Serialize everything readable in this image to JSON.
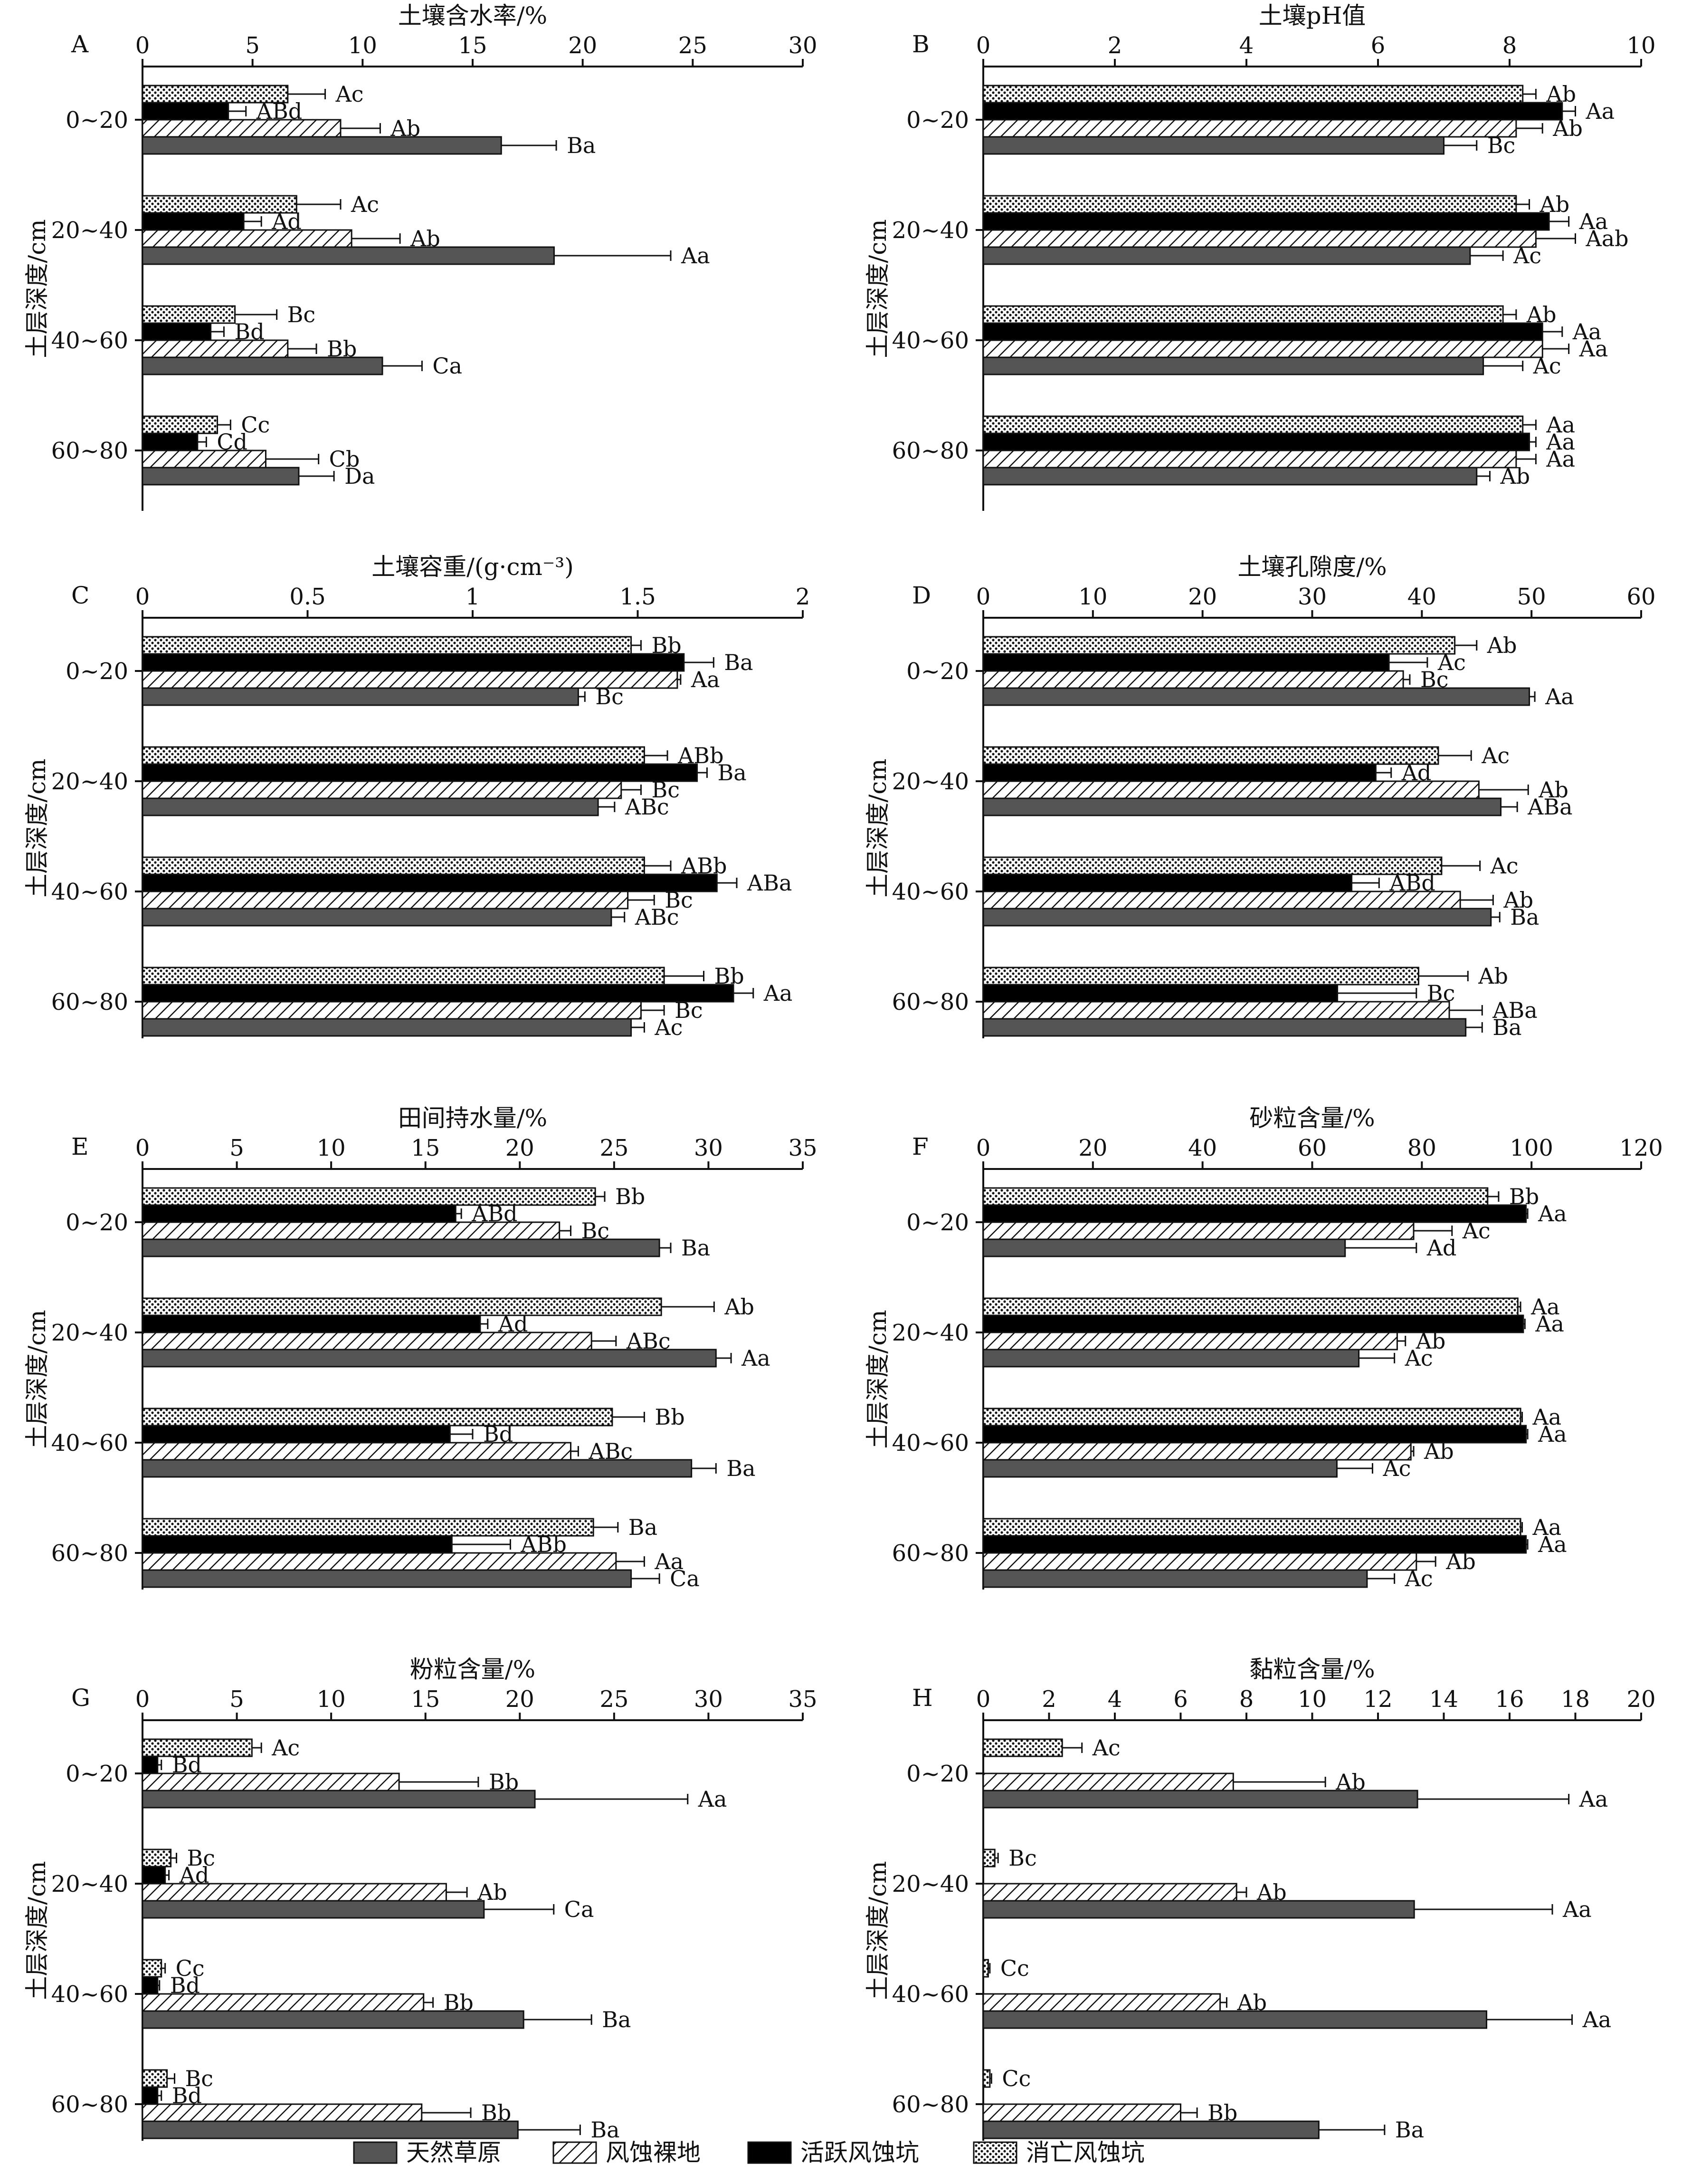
{
  "series_legend": [
    {
      "key": "grass",
      "label": "天然草原",
      "fill": "#555555"
    },
    {
      "key": "bare",
      "label": "风蚀裸地",
      "fill": "url(#hatch)"
    },
    {
      "key": "active",
      "label": "活跃风蚀坑",
      "fill": "#000000"
    },
    {
      "key": "dead",
      "label": "消亡风蚀坑",
      "fill": "url(#dots)"
    }
  ],
  "ylabel": "土层深度/cm",
  "depth_categories": [
    "0~20",
    "20~40",
    "40~60",
    "60~80"
  ],
  "chart_data": [
    {
      "type": "bar",
      "panel": "A",
      "title": "土壤含水率/%",
      "xlim": [
        0,
        30
      ],
      "xticks": [
        0,
        5,
        10,
        15,
        20,
        25,
        30
      ],
      "categories": [
        "0~20",
        "20~40",
        "40~60",
        "60~80"
      ],
      "series": [
        {
          "key": "dead",
          "values": [
            6.6,
            7.0,
            4.2,
            3.4
          ],
          "errors": [
            1.7,
            2.0,
            1.9,
            0.6
          ],
          "labels": [
            "Ac",
            "Ac",
            "Bc",
            "Cc"
          ]
        },
        {
          "key": "active",
          "values": [
            3.9,
            4.6,
            3.1,
            2.5
          ],
          "errors": [
            0.8,
            0.8,
            0.6,
            0.4
          ],
          "labels": [
            "ABd",
            "Ad",
            "Bd",
            "Cd"
          ]
        },
        {
          "key": "bare",
          "values": [
            9.0,
            9.5,
            6.6,
            5.6
          ],
          "errors": [
            1.8,
            2.2,
            1.3,
            2.4
          ],
          "labels": [
            "Ab",
            "Ab",
            "Bb",
            "Cb"
          ]
        },
        {
          "key": "grass",
          "values": [
            16.3,
            18.7,
            10.9,
            7.1
          ],
          "errors": [
            2.5,
            5.3,
            1.8,
            1.6
          ],
          "labels": [
            "Ba",
            "Aa",
            "Ca",
            "Da"
          ]
        }
      ]
    },
    {
      "type": "bar",
      "panel": "B",
      "title": "土壤pH值",
      "xlim": [
        0,
        10
      ],
      "xticks": [
        0,
        2,
        4,
        6,
        8,
        10
      ],
      "categories": [
        "0~20",
        "20~40",
        "40~60",
        "60~80"
      ],
      "series": [
        {
          "key": "dead",
          "values": [
            8.2,
            8.1,
            7.9,
            8.2
          ],
          "errors": [
            0.2,
            0.2,
            0.2,
            0.2
          ],
          "labels": [
            "Ab",
            "Ab",
            "Ab",
            "Aa"
          ]
        },
        {
          "key": "active",
          "values": [
            8.8,
            8.6,
            8.5,
            8.3
          ],
          "errors": [
            0.2,
            0.3,
            0.3,
            0.1
          ],
          "labels": [
            "Aa",
            "Aa",
            "Aa",
            "Aa"
          ]
        },
        {
          "key": "bare",
          "values": [
            8.1,
            8.4,
            8.5,
            8.1
          ],
          "errors": [
            0.4,
            0.6,
            0.4,
            0.3
          ],
          "labels": [
            "Ab",
            "Aab",
            "Aa",
            "Aa"
          ]
        },
        {
          "key": "grass",
          "values": [
            7.0,
            7.4,
            7.6,
            7.5
          ],
          "errors": [
            0.5,
            0.5,
            0.6,
            0.2
          ],
          "labels": [
            "Bc",
            "Ac",
            "Ac",
            "Ab"
          ]
        }
      ]
    },
    {
      "type": "bar",
      "panel": "C",
      "title": "土壤容重/(g·cm⁻³)",
      "xlim": [
        0,
        2.0
      ],
      "xticks": [
        0.0,
        0.5,
        1.0,
        1.5,
        2.0
      ],
      "categories": [
        "0~20",
        "20~40",
        "40~60",
        "60~80"
      ],
      "series": [
        {
          "key": "dead",
          "values": [
            1.48,
            1.52,
            1.52,
            1.58
          ],
          "errors": [
            0.03,
            0.07,
            0.08,
            0.12
          ],
          "labels": [
            "Bb",
            "ABb",
            "ABb",
            "Bb"
          ]
        },
        {
          "key": "active",
          "values": [
            1.64,
            1.68,
            1.74,
            1.79
          ],
          "errors": [
            0.09,
            0.03,
            0.06,
            0.06
          ],
          "labels": [
            "Ba",
            "Ba",
            "ABa",
            "Aa"
          ]
        },
        {
          "key": "bare",
          "values": [
            1.62,
            1.45,
            1.47,
            1.51
          ],
          "errors": [
            0.01,
            0.06,
            0.08,
            0.07
          ],
          "labels": [
            "Aa",
            "Bc",
            "Bc",
            "Bc"
          ]
        },
        {
          "key": "grass",
          "values": [
            1.32,
            1.38,
            1.42,
            1.48
          ],
          "errors": [
            0.02,
            0.05,
            0.04,
            0.04
          ],
          "labels": [
            "Bc",
            "ABc",
            "ABc",
            "Ac"
          ]
        }
      ]
    },
    {
      "type": "bar",
      "panel": "D",
      "title": "土壤孔隙度/%",
      "xlim": [
        0,
        60
      ],
      "xticks": [
        0,
        10,
        20,
        30,
        40,
        50,
        60
      ],
      "categories": [
        "0~20",
        "20~40",
        "40~60",
        "60~80"
      ],
      "series": [
        {
          "key": "dead",
          "values": [
            43.0,
            41.5,
            41.8,
            39.7
          ],
          "errors": [
            2.0,
            3.0,
            3.5,
            4.5
          ],
          "labels": [
            "Ab",
            "Ac",
            "Ac",
            "Ab"
          ]
        },
        {
          "key": "active",
          "values": [
            37.0,
            35.8,
            33.6,
            32.3
          ],
          "errors": [
            3.5,
            1.4,
            2.5,
            7.2
          ],
          "labels": [
            "Ac",
            "Ad",
            "ABd",
            "Bc"
          ]
        },
        {
          "key": "bare",
          "values": [
            38.3,
            45.2,
            43.5,
            42.5
          ],
          "errors": [
            0.6,
            4.5,
            3.0,
            3.0
          ],
          "labels": [
            "Bc",
            "Ab",
            "Ab",
            "ABa"
          ]
        },
        {
          "key": "grass",
          "values": [
            49.8,
            47.2,
            46.3,
            44.0
          ],
          "errors": [
            0.5,
            1.5,
            0.8,
            1.5
          ],
          "labels": [
            "Aa",
            "ABa",
            "Ba",
            "Ba"
          ]
        }
      ]
    },
    {
      "type": "bar",
      "panel": "E",
      "title": "田间持水量/%",
      "xlim": [
        0,
        35
      ],
      "xticks": [
        0,
        5,
        10,
        15,
        20,
        25,
        30,
        35
      ],
      "categories": [
        "0~20",
        "20~40",
        "40~60",
        "60~80"
      ],
      "series": [
        {
          "key": "dead",
          "values": [
            24.0,
            27.5,
            24.9,
            23.9
          ],
          "errors": [
            0.5,
            2.8,
            1.7,
            1.3
          ],
          "labels": [
            "Bb",
            "Ab",
            "Bb",
            "Ba"
          ]
        },
        {
          "key": "active",
          "values": [
            16.6,
            17.9,
            16.3,
            16.4
          ],
          "errors": [
            0.3,
            0.4,
            1.2,
            3.1
          ],
          "labels": [
            "ABd",
            "Ad",
            "Bd",
            "ABb"
          ]
        },
        {
          "key": "bare",
          "values": [
            22.1,
            23.8,
            22.7,
            25.1
          ],
          "errors": [
            0.6,
            1.3,
            0.4,
            1.5
          ],
          "labels": [
            "Bc",
            "ABc",
            "ABc",
            "Aa"
          ]
        },
        {
          "key": "grass",
          "values": [
            27.4,
            30.4,
            29.1,
            25.9
          ],
          "errors": [
            0.6,
            0.8,
            1.3,
            1.5
          ],
          "labels": [
            "Ba",
            "Aa",
            "Ba",
            "Ca"
          ]
        }
      ]
    },
    {
      "type": "bar",
      "panel": "F",
      "title": "砂粒含量/%",
      "xlim": [
        0,
        120
      ],
      "xticks": [
        0,
        20,
        40,
        60,
        80,
        100,
        120
      ],
      "categories": [
        "0~20",
        "20~40",
        "40~60",
        "60~80"
      ],
      "series": [
        {
          "key": "dead",
          "values": [
            92.0,
            97.5,
            98.0,
            98.0
          ],
          "errors": [
            2.0,
            0.5,
            0.3,
            0.3
          ],
          "labels": [
            "Bb",
            "Aa",
            "Aa",
            "Aa"
          ]
        },
        {
          "key": "active",
          "values": [
            99.0,
            98.5,
            99.0,
            99.0
          ],
          "errors": [
            0.3,
            0.3,
            0.3,
            0.3
          ],
          "labels": [
            "Aa",
            "Aa",
            "Aa",
            "Aa"
          ]
        },
        {
          "key": "bare",
          "values": [
            78.5,
            75.5,
            78.0,
            79.0
          ],
          "errors": [
            7.0,
            1.5,
            0.5,
            3.5
          ],
          "labels": [
            "Ac",
            "Ab",
            "Ab",
            "Ab"
          ]
        },
        {
          "key": "grass",
          "values": [
            66.0,
            68.5,
            64.5,
            70.0
          ],
          "errors": [
            13.0,
            6.5,
            6.5,
            5.0
          ],
          "labels": [
            "Ad",
            "Ac",
            "Ac",
            "Ac"
          ]
        }
      ]
    },
    {
      "type": "bar",
      "panel": "G",
      "title": "粉粒含量/%",
      "xlim": [
        0,
        35
      ],
      "xticks": [
        0,
        5,
        10,
        15,
        20,
        25,
        30,
        35
      ],
      "categories": [
        "0~20",
        "20~40",
        "40~60",
        "60~80"
      ],
      "series": [
        {
          "key": "dead",
          "values": [
            5.8,
            1.5,
            1.0,
            1.3
          ],
          "errors": [
            0.5,
            0.3,
            0.2,
            0.4
          ],
          "labels": [
            "Ac",
            "Bc",
            "Cc",
            "Bc"
          ]
        },
        {
          "key": "active",
          "values": [
            0.8,
            1.2,
            0.8,
            0.8
          ],
          "errors": [
            0.2,
            0.2,
            0.1,
            0.2
          ],
          "labels": [
            "Bd",
            "Ad",
            "Bd",
            "Bd"
          ]
        },
        {
          "key": "bare",
          "values": [
            13.6,
            16.1,
            14.9,
            14.8
          ],
          "errors": [
            4.2,
            1.1,
            0.5,
            2.6
          ],
          "labels": [
            "Bb",
            "Ab",
            "Bb",
            "Bb"
          ]
        },
        {
          "key": "grass",
          "values": [
            20.8,
            18.1,
            20.2,
            19.9
          ],
          "errors": [
            8.1,
            3.7,
            3.6,
            3.3
          ],
          "labels": [
            "Aa",
            "Ca",
            "Ba",
            "Ba"
          ]
        }
      ]
    },
    {
      "type": "bar",
      "panel": "H",
      "title": "黏粒含量/%",
      "xlim": [
        0,
        20
      ],
      "xticks": [
        0,
        2,
        4,
        6,
        8,
        10,
        12,
        14,
        16,
        18,
        20
      ],
      "categories": [
        "0~20",
        "20~40",
        "40~60",
        "60~80"
      ],
      "series": [
        {
          "key": "dead",
          "values": [
            2.4,
            0.35,
            0.15,
            0.2
          ],
          "errors": [
            0.6,
            0.1,
            0.05,
            0.05
          ],
          "labels": [
            "Ac",
            "Bc",
            "Cc",
            "Cc"
          ]
        },
        {
          "key": "active",
          "values": [
            0,
            0,
            0,
            0
          ],
          "errors": [
            0,
            0,
            0,
            0
          ],
          "labels": [
            "",
            "",
            "",
            ""
          ]
        },
        {
          "key": "bare",
          "values": [
            7.6,
            7.7,
            7.2,
            6.0
          ],
          "errors": [
            2.8,
            0.3,
            0.2,
            0.5
          ],
          "labels": [
            "Ab",
            "Ab",
            "Ab",
            "Bb"
          ]
        },
        {
          "key": "grass",
          "values": [
            13.2,
            13.1,
            15.3,
            10.2
          ],
          "errors": [
            4.6,
            4.2,
            2.6,
            2.0
          ],
          "labels": [
            "Aa",
            "Aa",
            "Aa",
            "Ba"
          ]
        }
      ]
    }
  ]
}
